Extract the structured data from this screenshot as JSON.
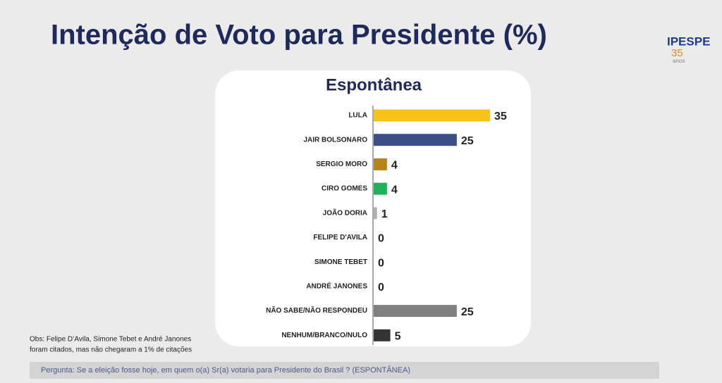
{
  "chart_data": {
    "type": "bar",
    "orientation": "horizontal",
    "title": "Intenção de Voto para Presidente (%)",
    "subtitle": "Espontânea",
    "categories": [
      "LULA",
      "JAIR BOLSONARO",
      "SERGIO MORO",
      "CIRO GOMES",
      "JOÃO DORIA",
      "FELIPE D'AVILA",
      "SIMONE TEBET",
      "ANDRÉ JANONES",
      "NÃO SABE/NÃO RESPONDEU",
      "NENHUM/BRANCO/NULO"
    ],
    "values": [
      35,
      25,
      4,
      4,
      1,
      0,
      0,
      0,
      25,
      5
    ],
    "colors": [
      "#f9c21a",
      "#3b4e86",
      "#b5851b",
      "#1fb25a",
      "#b0b0b0",
      "#b0b0b0",
      "#b0b0b0",
      "#b0b0b0",
      "#808080",
      "#333333"
    ],
    "note": [
      "Obs: Felipe D’Avila, Simone Tebet e André Janones",
      "foram citados, mas não chegaram a 1% de citações"
    ],
    "question": "Pergunta:  Se a eleição fosse hoje, em quem o(a) Sr(a) votaria para  Presidente do Brasil ? (ESPONTÂNEA)",
    "logo": {
      "name": "IPESPE",
      "years": "35",
      "unit": "anos"
    }
  }
}
